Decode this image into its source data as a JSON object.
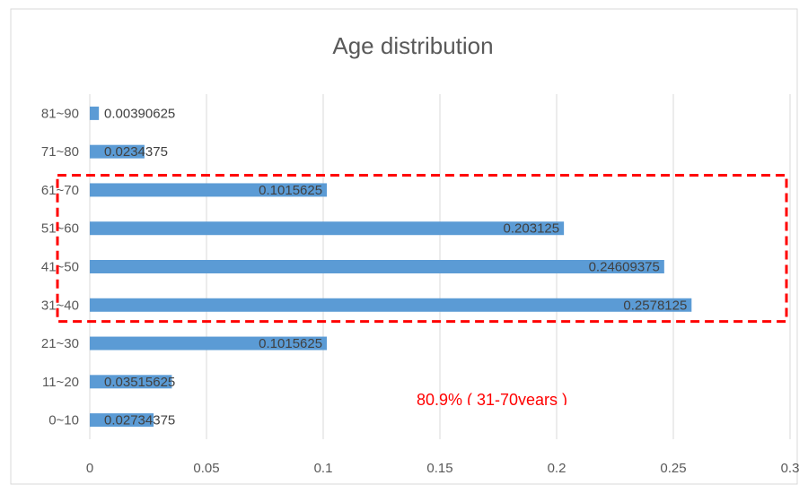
{
  "chart_data": {
    "type": "bar",
    "orientation": "horizontal",
    "title": "Age distribution",
    "categories": [
      "0~10",
      "11~20",
      "21~30",
      "31~40",
      "41~50",
      "51~60",
      "61~70",
      "71~80",
      "81~90"
    ],
    "values": [
      0.02734375,
      0.03515625,
      0.1015625,
      0.2578125,
      0.24609375,
      0.203125,
      0.1015625,
      0.0234375,
      0.00390625
    ],
    "value_labels": [
      "0.02734375",
      "0.03515625",
      "0.1015625",
      "0.2578125",
      "0.24609375",
      "0.203125",
      "0.1015625",
      "0.0234375",
      "0.00390625"
    ],
    "xlim": [
      0,
      0.3
    ],
    "x_ticks": [
      0,
      0.05,
      0.1,
      0.15,
      0.2,
      0.25,
      0.3
    ],
    "x_tick_labels": [
      "0",
      "0.05",
      "0.1",
      "0.15",
      "0.2",
      "0.25",
      "0.3"
    ],
    "grid": "vertical",
    "legend": "none",
    "bar_color": "#5b9bd5",
    "highlight": {
      "style": "dashed-box",
      "color": "#ff0000",
      "categories": [
        "31~40",
        "41~50",
        "51~60",
        "61~70"
      ]
    },
    "annotation": {
      "text": "80.9% ( 31-70years )",
      "color": "#ff0000"
    }
  }
}
